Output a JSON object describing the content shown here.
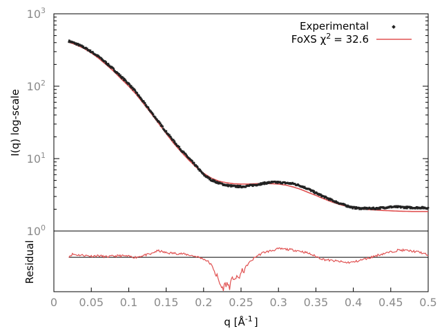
{
  "chart_data": [
    {
      "type": "scatter",
      "panel": "main",
      "xlim": [
        0,
        0.5
      ],
      "ylim": [
        1,
        1000
      ],
      "yscale": "log",
      "ylabel": "I(q) log-scale",
      "y_tick_labels": [
        {
          "base": "10",
          "exp": "0",
          "value": 1
        },
        {
          "base": "10",
          "exp": "1",
          "value": 10
        },
        {
          "base": "10",
          "exp": "2",
          "value": 100
        },
        {
          "base": "10",
          "exp": "3",
          "value": 1000
        }
      ],
      "legend_position": "top-right",
      "series": [
        {
          "name": "Experimental",
          "style": "points",
          "color": "#222222",
          "x": [
            0.02,
            0.03,
            0.04,
            0.05,
            0.06,
            0.07,
            0.08,
            0.09,
            0.1,
            0.11,
            0.12,
            0.13,
            0.14,
            0.15,
            0.16,
            0.17,
            0.18,
            0.19,
            0.2,
            0.21,
            0.22,
            0.23,
            0.24,
            0.25,
            0.26,
            0.27,
            0.28,
            0.29,
            0.3,
            0.31,
            0.32,
            0.33,
            0.34,
            0.35,
            0.36,
            0.37,
            0.38,
            0.39,
            0.4,
            0.41,
            0.42,
            0.43,
            0.44,
            0.45,
            0.46,
            0.47,
            0.48,
            0.49,
            0.5
          ],
          "y": [
            420,
            385,
            345,
            300,
            255,
            210,
            170,
            135,
            108,
            82,
            60,
            44,
            32,
            23.5,
            17.5,
            13.2,
            10.2,
            7.9,
            6.0,
            5.1,
            4.6,
            4.3,
            4.15,
            4.1,
            4.2,
            4.35,
            4.55,
            4.7,
            4.7,
            4.6,
            4.5,
            4.2,
            3.8,
            3.35,
            3.0,
            2.7,
            2.45,
            2.25,
            2.1,
            2.05,
            2.05,
            2.05,
            2.1,
            2.15,
            2.15,
            2.12,
            2.1,
            2.1,
            2.08
          ]
        },
        {
          "name": "FoXS",
          "legend_label": "FoXS χ",
          "legend_exp": "2",
          "legend_value": "= 32.6",
          "style": "line",
          "color": "#e05050",
          "x": [
            0.02,
            0.03,
            0.04,
            0.05,
            0.06,
            0.07,
            0.08,
            0.09,
            0.1,
            0.11,
            0.12,
            0.13,
            0.14,
            0.15,
            0.16,
            0.17,
            0.18,
            0.19,
            0.2,
            0.21,
            0.22,
            0.23,
            0.24,
            0.25,
            0.26,
            0.27,
            0.28,
            0.29,
            0.3,
            0.31,
            0.32,
            0.33,
            0.34,
            0.35,
            0.36,
            0.37,
            0.38,
            0.39,
            0.4,
            0.41,
            0.42,
            0.43,
            0.44,
            0.45,
            0.46,
            0.47,
            0.48,
            0.49,
            0.5
          ],
          "y": [
            405,
            372,
            333,
            288,
            242,
            198,
            160,
            126,
            100,
            77,
            57,
            42,
            30.5,
            22.2,
            16.3,
            12.4,
            9.6,
            7.6,
            6.3,
            5.4,
            4.9,
            4.65,
            4.5,
            4.45,
            4.45,
            4.5,
            4.55,
            4.5,
            4.45,
            4.3,
            4.05,
            3.75,
            3.4,
            3.1,
            2.8,
            2.55,
            2.35,
            2.2,
            2.1,
            2.02,
            1.98,
            1.95,
            1.92,
            1.9,
            1.88,
            1.87,
            1.86,
            1.86,
            1.86
          ]
        }
      ]
    },
    {
      "type": "line",
      "panel": "residual",
      "ylabel": "Residual",
      "xlabel": "q [Å",
      "xlabel_exp": "-1",
      "xlabel_suffix": "]",
      "xlim": [
        0,
        0.5
      ],
      "ylim": [
        -8.5,
        6.5
      ],
      "x_tick_labels": [
        "0",
        "0.05",
        "0.1",
        "0.15",
        "0.2",
        "0.25",
        "0.3",
        "0.35",
        "0.4",
        "0.45",
        "0.5"
      ],
      "x_ticks": [
        0,
        0.05,
        0.1,
        0.15,
        0.2,
        0.25,
        0.3,
        0.35,
        0.4,
        0.45,
        0.5
      ],
      "reference_line": 0,
      "series": [
        {
          "name": "",
          "color": "#e05050",
          "x": [
            0.02,
            0.025,
            0.03,
            0.04,
            0.05,
            0.06,
            0.07,
            0.08,
            0.09,
            0.1,
            0.11,
            0.12,
            0.13,
            0.135,
            0.14,
            0.15,
            0.16,
            0.17,
            0.18,
            0.19,
            0.2,
            0.205,
            0.21,
            0.215,
            0.22,
            0.225,
            0.23,
            0.235,
            0.24,
            0.245,
            0.25,
            0.255,
            0.26,
            0.27,
            0.28,
            0.29,
            0.3,
            0.31,
            0.32,
            0.33,
            0.34,
            0.35,
            0.36,
            0.37,
            0.38,
            0.39,
            0.4,
            0.41,
            0.42,
            0.43,
            0.44,
            0.45,
            0.46,
            0.47,
            0.48,
            0.49,
            0.5
          ],
          "y": [
            0.2,
            0.8,
            0.6,
            0.5,
            0.3,
            0.4,
            0.1,
            0.3,
            0.4,
            0.2,
            0.0,
            0.5,
            0.8,
            1.4,
            1.6,
            1.1,
            1.0,
            0.9,
            0.6,
            0.2,
            -0.4,
            -0.9,
            -1.8,
            -3.5,
            -5.8,
            -7.8,
            -6.5,
            -7.2,
            -4.8,
            -5.5,
            -4.0,
            -2.8,
            -1.5,
            0.2,
            1.2,
            1.6,
            2.1,
            2.0,
            1.8,
            1.5,
            1.0,
            0.2,
            -0.5,
            -0.8,
            -1.0,
            -1.3,
            -1.2,
            -0.7,
            -0.2,
            0.4,
            0.9,
            1.3,
            1.8,
            1.7,
            1.5,
            1.2,
            0.5
          ]
        }
      ]
    }
  ]
}
